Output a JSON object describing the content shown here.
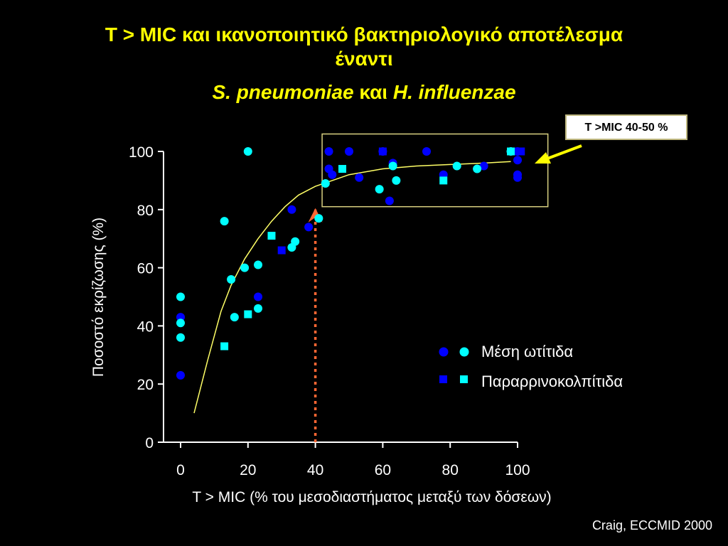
{
  "title": {
    "line1": "T > MIC και ικανοποιητικό βακτηριολογικό αποτέλεσμα",
    "line2": "έναντι",
    "line3_a": "S. pneumoniae",
    "line3_b": " και ",
    "line3_c": "H. influenzae"
  },
  "callout": "T >MIC 40-50 %",
  "source": "Craig, ECCMID 2000",
  "colors": {
    "dark": "#0000ff",
    "light": "#00ffff",
    "curve": "#ffff66",
    "title": "#ffff00",
    "arrow": "#ff6633",
    "box": "#d8d080"
  },
  "chart_data": {
    "type": "scatter",
    "xlabel": "T > MIC (% του μεσοδιαστήματος μεταξύ των δόσεων)",
    "ylabel": "Ποσοστό εκρίζωσης (%)",
    "xlim": [
      0,
      100
    ],
    "ylim": [
      0,
      100
    ],
    "xticks": [
      0,
      20,
      40,
      60,
      80,
      100
    ],
    "yticks": [
      0,
      20,
      40,
      60,
      80,
      100
    ],
    "legend": [
      {
        "label": "Μέση ωτίτιδα",
        "marker": "circle"
      },
      {
        "label": "Παραρρινοκολπίτιδα",
        "marker": "square"
      }
    ],
    "series": [
      {
        "marker": "circle",
        "color": "dark",
        "points": [
          [
            0,
            43
          ],
          [
            0,
            23
          ],
          [
            23,
            50
          ],
          [
            33,
            80
          ],
          [
            38,
            74
          ],
          [
            44,
            100
          ],
          [
            44,
            94
          ],
          [
            45,
            92
          ],
          [
            50,
            100
          ],
          [
            53,
            91
          ],
          [
            60,
            100
          ],
          [
            63,
            96
          ],
          [
            62,
            83
          ],
          [
            73,
            100
          ],
          [
            78,
            92
          ],
          [
            90,
            95
          ],
          [
            100,
            100
          ],
          [
            100,
            97
          ],
          [
            100,
            92
          ],
          [
            100,
            91
          ]
        ]
      },
      {
        "marker": "circle",
        "color": "light",
        "points": [
          [
            0,
            50
          ],
          [
            0,
            41
          ],
          [
            0,
            36
          ],
          [
            13,
            76
          ],
          [
            20,
            100
          ],
          [
            15,
            56
          ],
          [
            16,
            43
          ],
          [
            19,
            60
          ],
          [
            23,
            61
          ],
          [
            23,
            46
          ],
          [
            33,
            67
          ],
          [
            34,
            69
          ],
          [
            41,
            77
          ],
          [
            43,
            89
          ],
          [
            59,
            87
          ],
          [
            63,
            95
          ],
          [
            64,
            90
          ],
          [
            82,
            95
          ],
          [
            88,
            94
          ],
          [
            98,
            100
          ]
        ]
      },
      {
        "marker": "square",
        "color": "dark",
        "points": [
          [
            30,
            66
          ],
          [
            60,
            100
          ],
          [
            100,
            100
          ],
          [
            101,
            100
          ]
        ]
      },
      {
        "marker": "square",
        "color": "light",
        "points": [
          [
            13,
            33
          ],
          [
            20,
            44
          ],
          [
            27,
            71
          ],
          [
            48,
            94
          ],
          [
            78,
            90
          ],
          [
            98,
            100
          ]
        ]
      }
    ],
    "fit_curve": [
      [
        4,
        10
      ],
      [
        8,
        28
      ],
      [
        12,
        45
      ],
      [
        15,
        54
      ],
      [
        19,
        63
      ],
      [
        23,
        70
      ],
      [
        27,
        76
      ],
      [
        31,
        81
      ],
      [
        35,
        85
      ],
      [
        40,
        88
      ],
      [
        45,
        90
      ],
      [
        50,
        92
      ],
      [
        55,
        93
      ],
      [
        60,
        94
      ],
      [
        70,
        95
      ],
      [
        80,
        95.5
      ],
      [
        90,
        96
      ],
      [
        98,
        96.5
      ]
    ],
    "annotations": {
      "threshold_x": 40,
      "highlight_box": {
        "x": [
          42,
          109
        ],
        "y": [
          81,
          106
        ]
      }
    }
  }
}
